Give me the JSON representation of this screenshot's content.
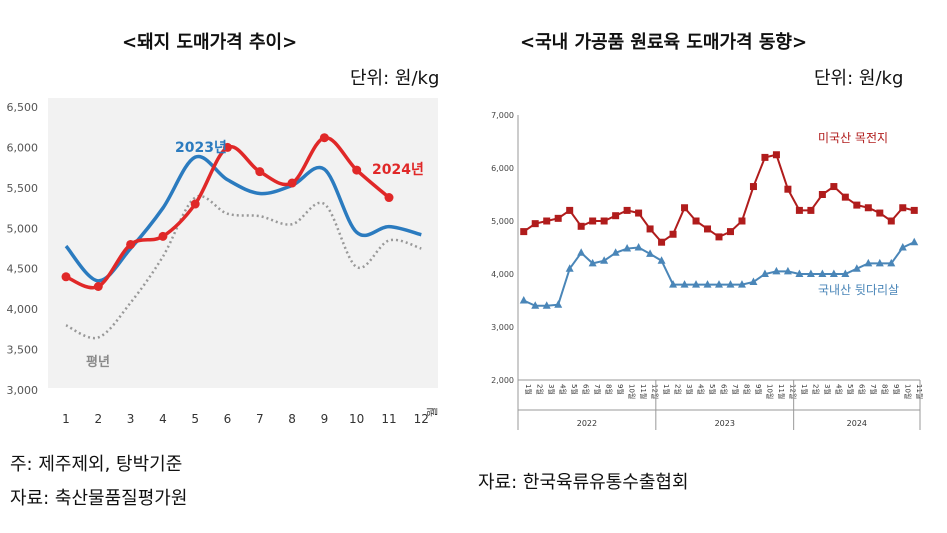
{
  "left": {
    "title": "<돼지 도매가격 추이>",
    "unit": "단위: 원/kg",
    "note1": "주: 제주제외, 탕박기준",
    "note2": "자료: 축산물품질평가원"
  },
  "right": {
    "title": "<국내 가공품 원료육 도매가격 동향>",
    "unit": "단위: 원/kg",
    "source": "자료: 한국육류유통수출협회"
  },
  "chart_data": [
    {
      "type": "line",
      "title": "<돼지 도매가격 추이>",
      "ylabel": "",
      "xlabel": "월",
      "ylim": [
        3000,
        6500
      ],
      "yticks": [
        "3,000",
        "3,500",
        "4,000",
        "4,500",
        "5,000",
        "5,500",
        "6,000",
        "6,500"
      ],
      "categories": [
        "1",
        "2",
        "3",
        "4",
        "5",
        "6",
        "7",
        "8",
        "9",
        "10",
        "11",
        "12"
      ],
      "x_unit_label": "월",
      "grid": false,
      "series": [
        {
          "name": "2023년",
          "color": "#2b7bbf",
          "values": [
            4780,
            4350,
            4750,
            5250,
            5880,
            5600,
            5430,
            5530,
            5730,
            4950,
            5020,
            4920
          ]
        },
        {
          "name": "2024년",
          "color": "#e02828",
          "values": [
            4400,
            4280,
            4800,
            4900,
            5300,
            6000,
            5700,
            5560,
            6120,
            5720,
            5380,
            null
          ]
        },
        {
          "name": "평년",
          "color": "#999999",
          "values": [
            3800,
            3650,
            4080,
            4650,
            5380,
            5180,
            5150,
            5050,
            5300,
            4520,
            4850,
            4750
          ]
        }
      ]
    },
    {
      "type": "line",
      "title": "<국내 가공품 원료육 도매가격 동향>",
      "ylim": [
        2000,
        7000
      ],
      "yticks": [
        "2,000",
        "3,000",
        "4,000",
        "5,000",
        "6,000",
        "7,000"
      ],
      "year_groups": [
        "2022",
        "2023",
        "2024"
      ],
      "categories": [
        "1월",
        "2월",
        "3월",
        "4월",
        "5월",
        "6월",
        "7월",
        "8월",
        "9월",
        "10월",
        "11월",
        "12월",
        "1월",
        "2월",
        "3월",
        "4월",
        "5월",
        "6월",
        "7월",
        "8월",
        "9월",
        "10월",
        "11월",
        "12월",
        "1월",
        "2월",
        "3월",
        "4월",
        "5월",
        "6월",
        "7월",
        "8월",
        "9월",
        "10월",
        "11월"
      ],
      "grid": false,
      "series": [
        {
          "name": "미국산 목전지",
          "color": "#b01c1c",
          "marker": "square",
          "values": [
            4800,
            4950,
            5000,
            5050,
            5200,
            4900,
            5000,
            5000,
            5100,
            5200,
            5150,
            4850,
            4600,
            4750,
            5250,
            5000,
            4850,
            4700,
            4800,
            5000,
            5650,
            6200,
            6250,
            5600,
            5200,
            5200,
            5500,
            5650,
            5450,
            5300,
            5250,
            5150,
            5000,
            5250,
            5200
          ]
        },
        {
          "name": "국내산 뒷다리살",
          "color": "#4a86b8",
          "marker": "triangle",
          "values": [
            3500,
            3400,
            3400,
            3420,
            4100,
            4400,
            4200,
            4250,
            4400,
            4480,
            4500,
            4380,
            4250,
            3800,
            3800,
            3800,
            3800,
            3800,
            3800,
            3800,
            3850,
            4000,
            4050,
            4050,
            4000,
            4000,
            4000,
            4000,
            4000,
            4100,
            4200,
            4200,
            4200,
            4500,
            4600
          ]
        }
      ]
    }
  ]
}
